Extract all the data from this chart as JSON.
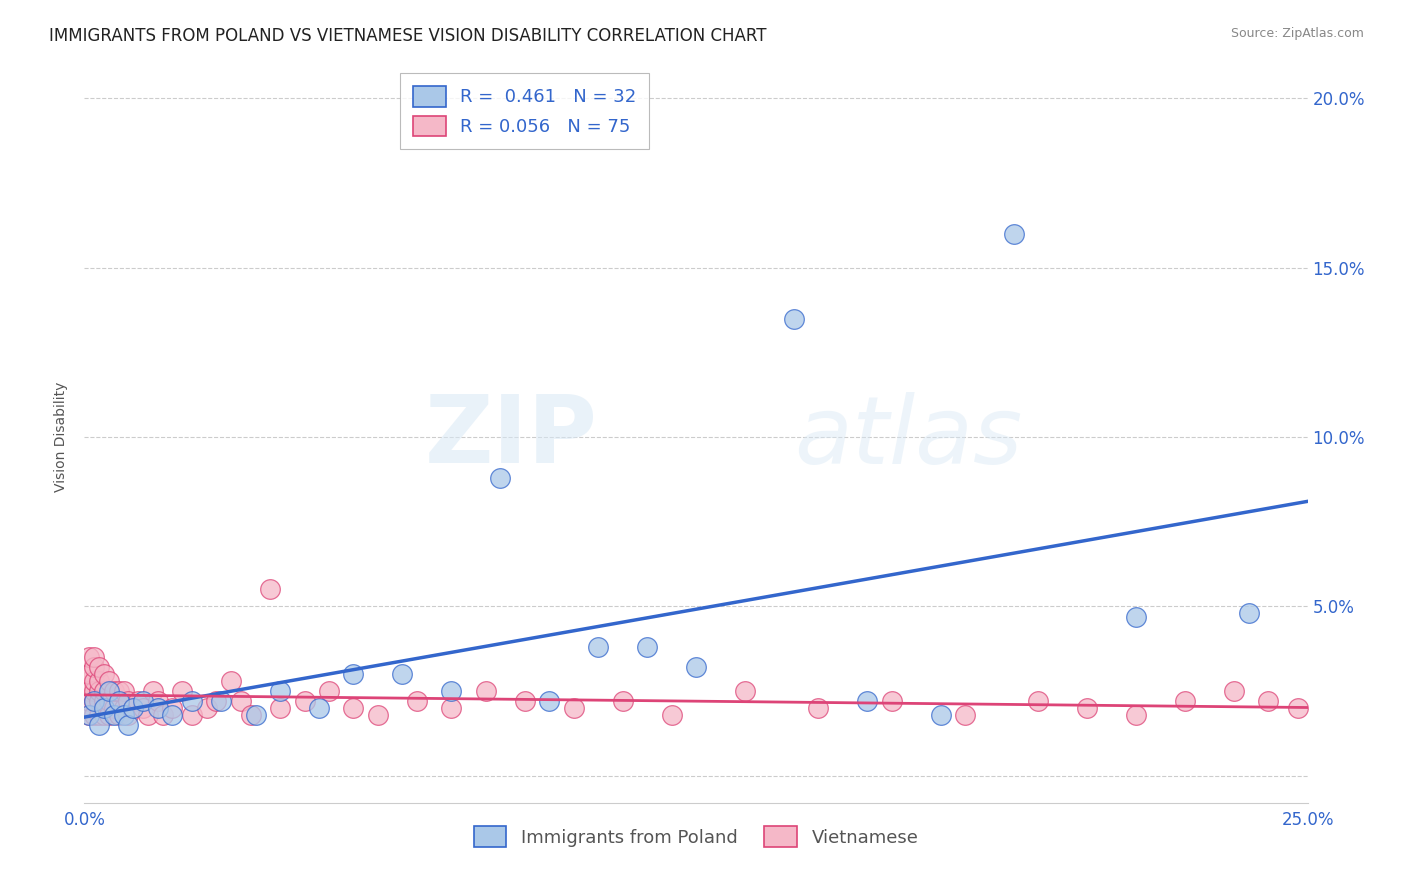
{
  "title": "IMMIGRANTS FROM POLAND VS VIETNAMESE VISION DISABILITY CORRELATION CHART",
  "source": "Source: ZipAtlas.com",
  "ylabel": "Vision Disability",
  "xlim": [
    0.0,
    0.25
  ],
  "ylim": [
    -0.008,
    0.208
  ],
  "xticks": [
    0.0,
    0.05,
    0.1,
    0.15,
    0.2,
    0.25
  ],
  "xticklabels_ends": [
    "0.0%",
    "25.0%"
  ],
  "yticks_right": [
    0.05,
    0.1,
    0.15,
    0.2
  ],
  "yticklabels_right": [
    "5.0%",
    "10.0%",
    "15.0%",
    "20.0%"
  ],
  "grid_color": "#cccccc",
  "background_color": "#ffffff",
  "poland_color": "#aac8e8",
  "polish_line_color": "#3366cc",
  "vietnamese_color": "#f5b8c8",
  "viet_line_color": "#dd4477",
  "legend_line1": "R =  0.461   N = 32",
  "legend_line2": "R = 0.056   N = 75",
  "poland_scatter_x": [
    0.001,
    0.002,
    0.003,
    0.004,
    0.005,
    0.006,
    0.007,
    0.008,
    0.009,
    0.01,
    0.012,
    0.015,
    0.018,
    0.022,
    0.028,
    0.035,
    0.04,
    0.048,
    0.055,
    0.065,
    0.075,
    0.085,
    0.095,
    0.105,
    0.115,
    0.125,
    0.145,
    0.16,
    0.175,
    0.19,
    0.215,
    0.238
  ],
  "poland_scatter_y": [
    0.018,
    0.022,
    0.015,
    0.02,
    0.025,
    0.018,
    0.022,
    0.018,
    0.015,
    0.02,
    0.022,
    0.02,
    0.018,
    0.022,
    0.022,
    0.018,
    0.025,
    0.02,
    0.03,
    0.03,
    0.025,
    0.088,
    0.022,
    0.038,
    0.038,
    0.032,
    0.135,
    0.022,
    0.018,
    0.16,
    0.047,
    0.048
  ],
  "viet_scatter_x": [
    0.001,
    0.001,
    0.001,
    0.001,
    0.001,
    0.001,
    0.001,
    0.001,
    0.001,
    0.001,
    0.002,
    0.002,
    0.002,
    0.002,
    0.002,
    0.002,
    0.003,
    0.003,
    0.003,
    0.003,
    0.003,
    0.004,
    0.004,
    0.004,
    0.004,
    0.005,
    0.005,
    0.005,
    0.006,
    0.006,
    0.007,
    0.007,
    0.008,
    0.008,
    0.009,
    0.009,
    0.01,
    0.011,
    0.012,
    0.013,
    0.014,
    0.015,
    0.016,
    0.018,
    0.02,
    0.022,
    0.025,
    0.027,
    0.03,
    0.032,
    0.034,
    0.038,
    0.04,
    0.045,
    0.05,
    0.055,
    0.06,
    0.068,
    0.075,
    0.082,
    0.09,
    0.1,
    0.11,
    0.12,
    0.135,
    0.15,
    0.165,
    0.18,
    0.195,
    0.205,
    0.215,
    0.225,
    0.235,
    0.242,
    0.248
  ],
  "viet_scatter_y": [
    0.02,
    0.023,
    0.025,
    0.028,
    0.03,
    0.018,
    0.022,
    0.025,
    0.03,
    0.035,
    0.018,
    0.022,
    0.025,
    0.028,
    0.032,
    0.035,
    0.018,
    0.022,
    0.025,
    0.028,
    0.032,
    0.018,
    0.022,
    0.025,
    0.03,
    0.018,
    0.022,
    0.028,
    0.02,
    0.025,
    0.018,
    0.025,
    0.02,
    0.025,
    0.018,
    0.022,
    0.02,
    0.022,
    0.02,
    0.018,
    0.025,
    0.022,
    0.018,
    0.02,
    0.025,
    0.018,
    0.02,
    0.022,
    0.028,
    0.022,
    0.018,
    0.055,
    0.02,
    0.022,
    0.025,
    0.02,
    0.018,
    0.022,
    0.02,
    0.025,
    0.022,
    0.02,
    0.022,
    0.018,
    0.025,
    0.02,
    0.022,
    0.018,
    0.022,
    0.02,
    0.018,
    0.022,
    0.025,
    0.022,
    0.02
  ],
  "watermark_zip": "ZIP",
  "watermark_atlas": "atlas",
  "title_fontsize": 12,
  "axis_label_fontsize": 10,
  "tick_fontsize": 12,
  "legend_fontsize": 13
}
